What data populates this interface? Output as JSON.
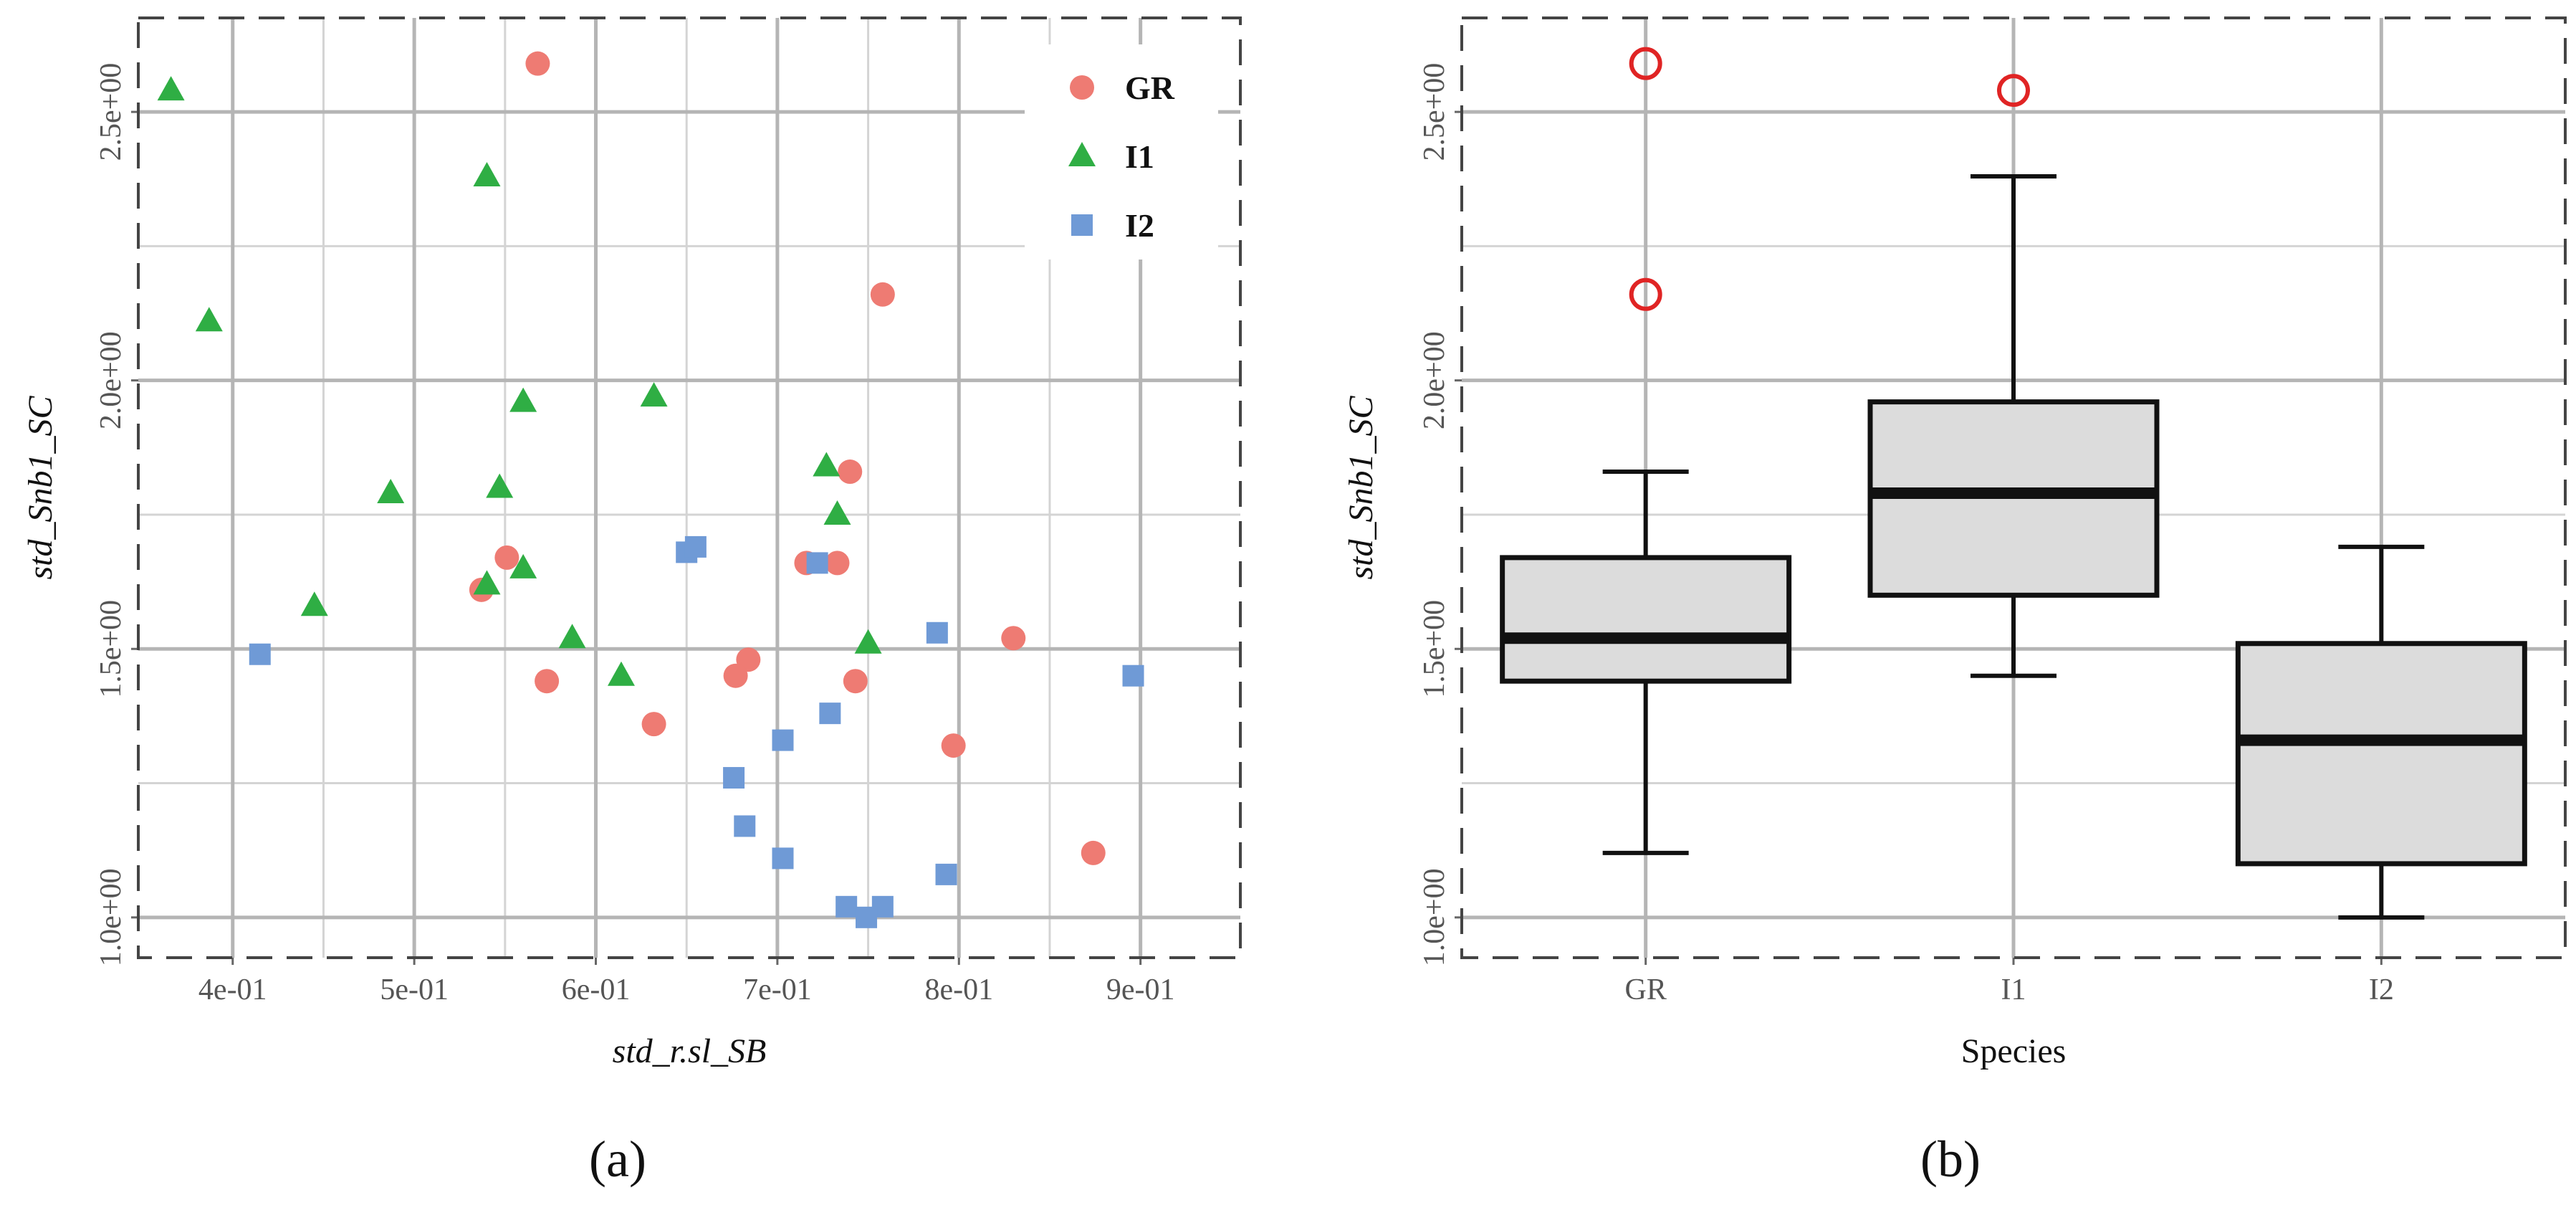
{
  "colors": {
    "GR": "#ee7b73",
    "I1": "#2fae44",
    "I2": "#6f9ad6",
    "outlier": "#e02424",
    "box_fill": "#dcdcdc",
    "grid": "#b5b5b5"
  },
  "chart_data": [
    {
      "id": "a",
      "type": "scatter",
      "panel_label": "(a)",
      "xlabel": "std_r.sl_SB",
      "ylabel": "std_Snb1_SC",
      "xlim": [
        0.348,
        0.955
      ],
      "ylim": [
        0.925,
        2.675
      ],
      "xticks": [
        0.4,
        0.5,
        0.6,
        0.7,
        0.8,
        0.9
      ],
      "xtick_labels": [
        "4e-01",
        "5e-01",
        "6e-01",
        "7e-01",
        "8e-01",
        "9e-01"
      ],
      "yticks": [
        1.0,
        1.5,
        2.0,
        2.5
      ],
      "ytick_labels": [
        "1.0e+00",
        "1.5e+00",
        "2.0e+00",
        "2.5e+00"
      ],
      "legend": {
        "position": "top-right",
        "entries": [
          "GR",
          "I1",
          "I2"
        ]
      },
      "series": [
        {
          "name": "GR",
          "marker": "circle",
          "x": [
            0.568,
            0.758,
            0.74,
            0.551,
            0.537,
            0.733,
            0.716,
            0.83,
            0.684,
            0.677,
            0.573,
            0.743,
            0.632,
            0.797,
            0.874
          ],
          "y": [
            2.59,
            2.16,
            1.83,
            1.67,
            1.61,
            1.66,
            1.66,
            1.52,
            1.48,
            1.45,
            1.44,
            1.44,
            1.36,
            1.32,
            1.12
          ]
        },
        {
          "name": "I1",
          "marker": "triangle",
          "x": [
            0.366,
            0.54,
            0.387,
            0.56,
            0.632,
            0.487,
            0.547,
            0.727,
            0.733,
            0.445,
            0.54,
            0.56,
            0.587,
            0.614,
            0.75
          ],
          "y": [
            2.54,
            2.38,
            2.11,
            1.96,
            1.97,
            1.79,
            1.8,
            1.84,
            1.75,
            1.58,
            1.62,
            1.65,
            1.52,
            1.45,
            1.51
          ]
        },
        {
          "name": "I2",
          "marker": "square",
          "x": [
            0.415,
            0.65,
            0.655,
            0.722,
            0.788,
            0.896,
            0.729,
            0.703,
            0.676,
            0.682,
            0.703,
            0.793,
            0.738,
            0.758,
            0.749
          ],
          "y": [
            1.49,
            1.68,
            1.69,
            1.66,
            1.53,
            1.45,
            1.38,
            1.33,
            1.26,
            1.17,
            1.11,
            1.08,
            1.02,
            1.02,
            1.0
          ]
        }
      ]
    },
    {
      "id": "b",
      "type": "boxplot",
      "panel_label": "(b)",
      "xlabel": "Species",
      "ylabel": "std_Snb1_SC",
      "ylim": [
        0.925,
        2.675
      ],
      "yticks": [
        1.0,
        1.5,
        2.0,
        2.5
      ],
      "ytick_labels": [
        "1.0e+00",
        "1.5e+00",
        "2.0e+00",
        "2.5e+00"
      ],
      "categories": [
        "GR",
        "I1",
        "I2"
      ],
      "boxes": [
        {
          "name": "GR",
          "whisker_low": 1.12,
          "q1": 1.44,
          "median": 1.52,
          "q3": 1.67,
          "whisker_high": 1.83,
          "outliers": [
            2.59,
            2.16
          ]
        },
        {
          "name": "I1",
          "whisker_low": 1.45,
          "q1": 1.6,
          "median": 1.79,
          "q3": 1.96,
          "whisker_high": 2.38,
          "outliers": [
            2.54
          ]
        },
        {
          "name": "I2",
          "whisker_low": 1.0,
          "q1": 1.1,
          "median": 1.33,
          "q3": 1.51,
          "whisker_high": 1.69,
          "outliers": []
        }
      ]
    }
  ]
}
